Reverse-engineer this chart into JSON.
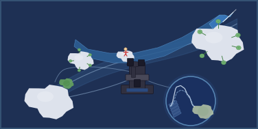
{
  "bg_color": "#1e3054",
  "border_color": "#2a3a5a",
  "arrow_body_color": "#2e5a8a",
  "arrow_edge_color": "#5080aa",
  "curve_color": "#8ab0d0",
  "particle_main": "#dde2ec",
  "particle_dark": "#b8c0d0",
  "particle_light": "#f0f2f8",
  "green_dark": "#3a7a3a",
  "green_mid": "#5a9a5a",
  "green_light": "#7aba7a",
  "inset_bg": "#1a3060",
  "inset_edge": "#6a9ac0",
  "microscope_body": "#303040",
  "microscope_dark": "#1a1a28",
  "microscope_blue": "#2a4a80",
  "figsize": [
    3.76,
    1.89
  ],
  "dpi": 100
}
